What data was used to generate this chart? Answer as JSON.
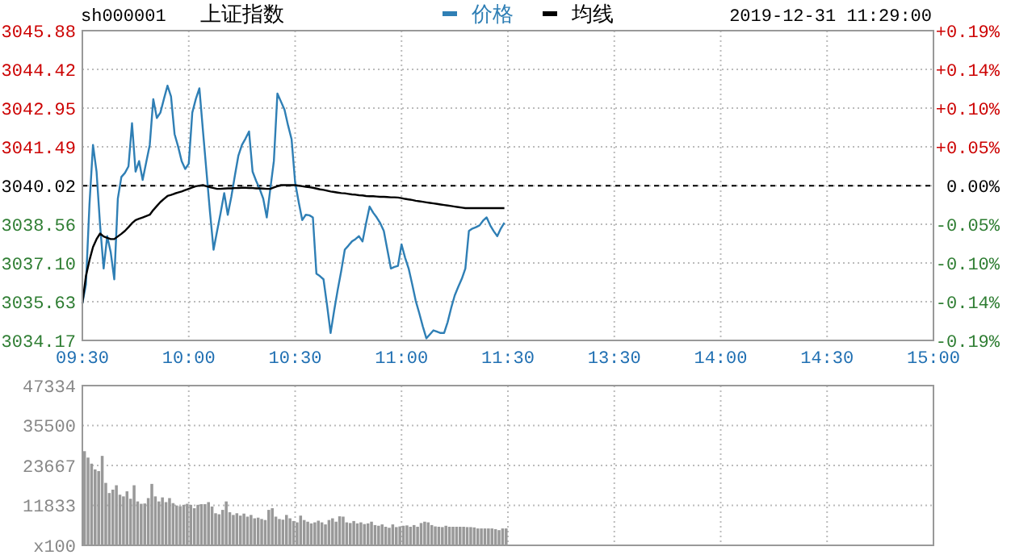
{
  "chart_data": [
    {
      "type": "line",
      "title": "上证指数",
      "subtitle": "sh000001",
      "annotations": [
        "2019-12-31 11:29:00"
      ],
      "legend": "top",
      "grid": true,
      "categories": [
        "09:30",
        null,
        null,
        null,
        null,
        null,
        null,
        null,
        null,
        null,
        null,
        null,
        null,
        null,
        null,
        null,
        null,
        null,
        null,
        null,
        null,
        null,
        null,
        null,
        null,
        null,
        null,
        null,
        null,
        null,
        "10:00",
        null,
        null,
        null,
        null,
        null,
        null,
        null,
        null,
        null,
        null,
        null,
        null,
        null,
        null,
        null,
        null,
        null,
        null,
        null,
        null,
        null,
        null,
        null,
        null,
        null,
        null,
        null,
        null,
        null,
        "10:30",
        null,
        null,
        null,
        null,
        null,
        null,
        null,
        null,
        null,
        null,
        null,
        null,
        null,
        null,
        null,
        null,
        null,
        null,
        null,
        null,
        null,
        null,
        null,
        null,
        null,
        null,
        null,
        null,
        null,
        "11:00",
        null,
        null,
        null,
        null,
        null,
        null,
        null,
        null,
        null,
        null,
        null,
        null,
        null,
        null,
        null,
        null,
        null,
        null,
        null,
        null,
        null,
        null,
        null,
        null,
        null,
        null,
        null,
        null,
        null,
        "11:30",
        null,
        null,
        null,
        null,
        null,
        null,
        null,
        null,
        null,
        null,
        null,
        null,
        null,
        null,
        null,
        null,
        null,
        null,
        null,
        null,
        null,
        null,
        null,
        null,
        null,
        null,
        null,
        null,
        null,
        "13:30",
        null,
        null,
        null,
        null,
        null,
        null,
        null,
        null,
        null,
        null,
        null,
        null,
        null,
        null,
        null,
        null,
        null,
        null,
        null,
        null,
        null,
        null,
        null,
        null,
        null,
        null,
        null,
        null,
        null,
        "14:00",
        null,
        null,
        null,
        null,
        null,
        null,
        null,
        null,
        null,
        null,
        null,
        null,
        null,
        null,
        null,
        null,
        null,
        null,
        null,
        null,
        null,
        null,
        null,
        null,
        null,
        null,
        null,
        null,
        null,
        "14:30",
        null,
        null,
        null,
        null,
        null,
        null,
        null,
        null,
        null,
        null,
        null,
        null,
        null,
        null,
        null,
        null,
        null,
        null,
        null,
        null,
        null,
        null,
        null,
        null,
        null,
        null,
        null,
        null,
        null,
        "15:00"
      ],
      "ylim": [
        3034.17,
        3045.88
      ],
      "yticks": [
        3034.17,
        3035.63,
        {
          "value": 3037.1,
          "label": "3037.10"
        },
        3038.56,
        3040.02,
        3041.49,
        3042.95,
        3044.42,
        3045.88
      ],
      "y2lim": [
        -0.1928,
        0.1928
      ],
      "y2ticks": [
        {
          "value": -0.1928,
          "label": "-0.19%"
        },
        {
          "value": -0.1446,
          "label": "-0.14%"
        },
        {
          "value": -0.0964,
          "label": "-0.10%"
        },
        {
          "value": -0.0482,
          "label": "-0.05%"
        },
        {
          "value": 0,
          "label": "0.00%"
        },
        {
          "value": 0.0482,
          "label": "+0.05%"
        },
        {
          "value": 0.0964,
          "label": "+0.10%"
        },
        {
          "value": 0.1446,
          "label": "+0.14%"
        },
        {
          "value": 0.1928,
          "label": "+0.19%"
        }
      ],
      "ref_lines": [
        {
          "axis": "y",
          "value": 3040.02,
          "color": "#000000",
          "line_style": "dashed"
        }
      ],
      "series": [
        {
          "name": "价格",
          "color": "#2f7fb5",
          "values": [
            3035.57,
            3036.28,
            3039.3,
            3041.56,
            3040.55,
            3038.52,
            3036.89,
            3038.11,
            3037.5,
            3036.48,
            3039.53,
            3040.35,
            3040.5,
            3040.75,
            3042.38,
            3040.55,
            3040.95,
            3040.24,
            3040.9,
            3041.56,
            3043.29,
            3042.58,
            3042.78,
            3043.3,
            3043.8,
            3043.39,
            3041.97,
            3041.5,
            3040.95,
            3040.65,
            3040.85,
            3042.78,
            3043.3,
            3043.7,
            3042.1,
            3040.55,
            3039.0,
            3037.6,
            3038.31,
            3039.0,
            3039.74,
            3038.92,
            3039.6,
            3040.4,
            3041.16,
            3041.56,
            3041.8,
            3042.07,
            3040.55,
            3040.2,
            3039.9,
            3039.53,
            3038.82,
            3039.9,
            3040.95,
            3043.5,
            3043.2,
            3042.89,
            3042.3,
            3041.77,
            3040.14,
            3039.4,
            3038.72,
            3038.92,
            3038.9,
            3038.82,
            3036.69,
            3036.6,
            3036.48,
            3035.5,
            3034.45,
            3035.3,
            3036.08,
            3036.8,
            3037.6,
            3037.75,
            3037.91,
            3038.0,
            3038.11,
            3037.91,
            3038.6,
            3039.23,
            3039.0,
            3038.82,
            3038.6,
            3038.31,
            3037.6,
            3036.89,
            3036.95,
            3036.99,
            3037.8,
            3037.3,
            3036.89,
            3036.3,
            3035.67,
            3035.2,
            3034.7,
            3034.25,
            3034.4,
            3034.55,
            3034.5,
            3034.45,
            3034.45,
            3034.86,
            3035.4,
            3035.87,
            3036.2,
            3036.5,
            3036.89,
            3038.31,
            3038.4,
            3038.45,
            3038.52,
            3038.7,
            3038.82,
            3038.52,
            3038.3,
            3038.11,
            3038.4,
            3038.62,
            null,
            null,
            null,
            null,
            null,
            null,
            null,
            null,
            null,
            null,
            null,
            null,
            null,
            null,
            null,
            null,
            null,
            null,
            null,
            null,
            null,
            null,
            null,
            null,
            null,
            null,
            null,
            null,
            null,
            null,
            null,
            null,
            null,
            null,
            null,
            null,
            null,
            null,
            null,
            null,
            null,
            null,
            null,
            null,
            null,
            null,
            null,
            null,
            null,
            null,
            null,
            null,
            null,
            null,
            null,
            null,
            null,
            null,
            null,
            null,
            null,
            null,
            null,
            null,
            null,
            null,
            null,
            null,
            null,
            null,
            null,
            null,
            null,
            null,
            null,
            null,
            null,
            null,
            null,
            null,
            null,
            null,
            null,
            null,
            null,
            null,
            null,
            null,
            null,
            null,
            null,
            null,
            null,
            null,
            null,
            null,
            null,
            null,
            null,
            null,
            null,
            null,
            null,
            null,
            null,
            null,
            null,
            null,
            null,
            null,
            null,
            null,
            null,
            null,
            null,
            null,
            null,
            null,
            null,
            null,
            null
          ]
        },
        {
          "name": "均线",
          "color": "#000000",
          "values": [
            3035.57,
            3036.6,
            3037.2,
            3037.7,
            3038.0,
            3038.21,
            3038.1,
            3038.05,
            3038.0,
            3038.0,
            3038.1,
            3038.2,
            3038.31,
            3038.45,
            3038.6,
            3038.72,
            3038.77,
            3038.82,
            3038.87,
            3038.92,
            3039.1,
            3039.25,
            3039.4,
            3039.52,
            3039.63,
            3039.67,
            3039.72,
            3039.76,
            3039.8,
            3039.85,
            3039.9,
            3039.95,
            3040.0,
            3040.02,
            3040.04,
            3040.0,
            3039.96,
            3039.93,
            3039.9,
            3039.9,
            3039.91,
            3039.92,
            3039.92,
            3039.93,
            3039.93,
            3039.94,
            3039.94,
            3039.93,
            3039.93,
            3039.92,
            3039.92,
            3039.91,
            3039.9,
            3039.9,
            3039.95,
            3040.0,
            3040.04,
            3040.04,
            3040.04,
            3040.04,
            3040.04,
            3040.02,
            3040.0,
            3039.98,
            3039.96,
            3039.94,
            3039.91,
            3039.88,
            3039.86,
            3039.83,
            3039.8,
            3039.78,
            3039.76,
            3039.74,
            3039.73,
            3039.71,
            3039.69,
            3039.68,
            3039.66,
            3039.65,
            3039.63,
            3039.62,
            3039.62,
            3039.61,
            3039.6,
            3039.6,
            3039.59,
            3039.58,
            3039.58,
            3039.57,
            3039.55,
            3039.52,
            3039.5,
            3039.48,
            3039.45,
            3039.43,
            3039.41,
            3039.39,
            3039.37,
            3039.35,
            3039.33,
            3039.31,
            3039.29,
            3039.27,
            3039.25,
            3039.23,
            3039.21,
            3039.19,
            3039.17,
            3039.17,
            3039.17,
            3039.17,
            3039.17,
            3039.17,
            3039.17,
            3039.17,
            3039.17,
            3039.17,
            3039.17,
            3039.17,
            null,
            null,
            null,
            null,
            null,
            null,
            null,
            null,
            null,
            null,
            null,
            null,
            null,
            null,
            null,
            null,
            null,
            null,
            null,
            null,
            null,
            null,
            null,
            null,
            null,
            null,
            null,
            null,
            null,
            null,
            null,
            null,
            null,
            null,
            null,
            null,
            null,
            null,
            null,
            null,
            null,
            null,
            null,
            null,
            null,
            null,
            null,
            null,
            null,
            null,
            null,
            null,
            null,
            null,
            null,
            null,
            null,
            null,
            null,
            null,
            null,
            null,
            null,
            null,
            null,
            null,
            null,
            null,
            null,
            null,
            null,
            null,
            null,
            null,
            null,
            null,
            null,
            null,
            null,
            null,
            null,
            null,
            null,
            null,
            null,
            null,
            null,
            null,
            null,
            null,
            null,
            null,
            null,
            null,
            null,
            null,
            null,
            null,
            null,
            null,
            null,
            null,
            null,
            null,
            null,
            null,
            null,
            null,
            null,
            null,
            null,
            null,
            null,
            null,
            null,
            null,
            null,
            null,
            null,
            null,
            null
          ]
        }
      ]
    },
    {
      "type": "bar",
      "grid": true,
      "tick_labels": "y",
      "ylim": [
        0,
        47334
      ],
      "yticks": [
        {
          "value": 0,
          "label": "x100"
        },
        11833,
        23667,
        35500,
        47334
      ],
      "categories": [
        null,
        null,
        null,
        null,
        null,
        null,
        null,
        null,
        null,
        null,
        null,
        null,
        null,
        null,
        null,
        null,
        null,
        null,
        null,
        null,
        null,
        null,
        null,
        null,
        null,
        null,
        null,
        null,
        null,
        null,
        null,
        null,
        null,
        null,
        null,
        null,
        null,
        null,
        null,
        null,
        null,
        null,
        null,
        null,
        null,
        null,
        null,
        null,
        null,
        null,
        null,
        null,
        null,
        null,
        null,
        null,
        null,
        null,
        null,
        null,
        null,
        null,
        null,
        null,
        null,
        null,
        null,
        null,
        null,
        null,
        null,
        null,
        null,
        null,
        null,
        null,
        null,
        null,
        null,
        null,
        null,
        null,
        null,
        null,
        null,
        null,
        null,
        null,
        null,
        null,
        null,
        null,
        null,
        null,
        null,
        null,
        null,
        null,
        null,
        null,
        null,
        null,
        null,
        null,
        null,
        null,
        null,
        null,
        null,
        null,
        null,
        null,
        null,
        null,
        null,
        null,
        null,
        null,
        null,
        null,
        null,
        null,
        null,
        null,
        null,
        null,
        null,
        null,
        null,
        null,
        null,
        null,
        null,
        null,
        null,
        null,
        null,
        null,
        null,
        null,
        null,
        null,
        null,
        null,
        null,
        null,
        null,
        null,
        null,
        null,
        null,
        null,
        null,
        null,
        null,
        null,
        null,
        null,
        null,
        null,
        null,
        null,
        null,
        null,
        null,
        null,
        null,
        null,
        null,
        null,
        null,
        null,
        null,
        null,
        null,
        null,
        null,
        null,
        null,
        null,
        null,
        null,
        null,
        null,
        null,
        null,
        null,
        null,
        null,
        null,
        null,
        null,
        null,
        null,
        null,
        null,
        null,
        null,
        null,
        null,
        null,
        null,
        null,
        null,
        null,
        null,
        null,
        null,
        null,
        null,
        null,
        null,
        null,
        null,
        null,
        null,
        null,
        null,
        null,
        null,
        null,
        null,
        null,
        null,
        null,
        null,
        null,
        null,
        null,
        null,
        null,
        null,
        null,
        null,
        null,
        null,
        null,
        null,
        null,
        null
      ],
      "series": [
        {
          "color": "#999999",
          "values": [
            27900,
            26000,
            24200,
            22500,
            22000,
            26500,
            18500,
            15500,
            16500,
            17800,
            15000,
            14500,
            16000,
            13800,
            17800,
            13000,
            12300,
            12400,
            14000,
            18200,
            14500,
            13000,
            14200,
            12800,
            14000,
            12500,
            11800,
            11600,
            12000,
            12300,
            12000,
            11000,
            12000,
            12200,
            12200,
            12800,
            11500,
            9500,
            9200,
            10500,
            13000,
            9800,
            9000,
            9500,
            8800,
            9400,
            8500,
            9000,
            8000,
            8200,
            7800,
            7500,
            10500,
            11000,
            8500,
            7800,
            7600,
            9000,
            8000,
            7200,
            6800,
            8800,
            7500,
            7000,
            6500,
            6800,
            7300,
            6800,
            6200,
            7500,
            8000,
            7000,
            8600,
            8500,
            6800,
            6600,
            7200,
            6500,
            6800,
            6300,
            6500,
            7000,
            6000,
            5800,
            6200,
            5500,
            5200,
            6200,
            5400,
            5600,
            5800,
            5900,
            5500,
            6000,
            5500,
            6600,
            7000,
            6800,
            6000,
            5600,
            5500,
            5400,
            5800,
            5500,
            5500,
            5500,
            5500,
            5500,
            5400,
            5400,
            5300,
            5000,
            5000,
            5000,
            5000,
            5000,
            4800,
            4500,
            5000,
            5000,
            null,
            null,
            null,
            null,
            null,
            null,
            null,
            null,
            null,
            null,
            null,
            null,
            null,
            null,
            null,
            null,
            null,
            null,
            null,
            null,
            null,
            null,
            null,
            null,
            null,
            null,
            null,
            null,
            null,
            null,
            null,
            null,
            null,
            null,
            null,
            null,
            null,
            null,
            null,
            null,
            null,
            null,
            null,
            null,
            null,
            null,
            null,
            null,
            null,
            null,
            null,
            null,
            null,
            null,
            null,
            null,
            null,
            null,
            null,
            null,
            null,
            null,
            null,
            null,
            null,
            null,
            null,
            null,
            null,
            null,
            null,
            null,
            null,
            null,
            null,
            null,
            null,
            null,
            null,
            null,
            null,
            null,
            null,
            null,
            null,
            null,
            null,
            null,
            null,
            null,
            null,
            null,
            null,
            null,
            null,
            null,
            null,
            null,
            null,
            null,
            null,
            null,
            null,
            null,
            null,
            null,
            null,
            null,
            null,
            null,
            null,
            null,
            null,
            null,
            null,
            null,
            null,
            null,
            null,
            null
          ]
        }
      ]
    }
  ]
}
